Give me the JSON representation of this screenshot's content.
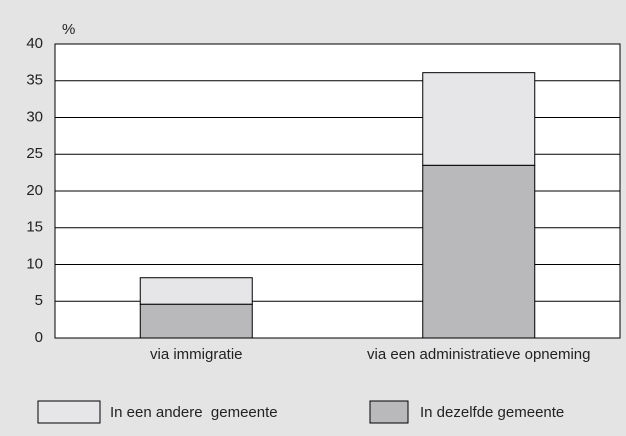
{
  "chart_data": {
    "type": "stacked_bar",
    "y_label": "%",
    "categories": [
      "via immigratie",
      "via een administratieve opneming"
    ],
    "series": [
      {
        "name": "In een andere  gemeente",
        "color": "#e6e6e8",
        "values": [
          3.6,
          12.6
        ]
      },
      {
        "name": "In dezelfde gemeente",
        "color": "#b9b9bc",
        "values": [
          4.6,
          23.5
        ]
      }
    ],
    "ylim": [
      0,
      40
    ],
    "yticks": [
      0,
      5,
      10,
      15,
      20,
      25,
      30,
      35,
      40
    ],
    "grid": true,
    "legend": "bottom"
  }
}
